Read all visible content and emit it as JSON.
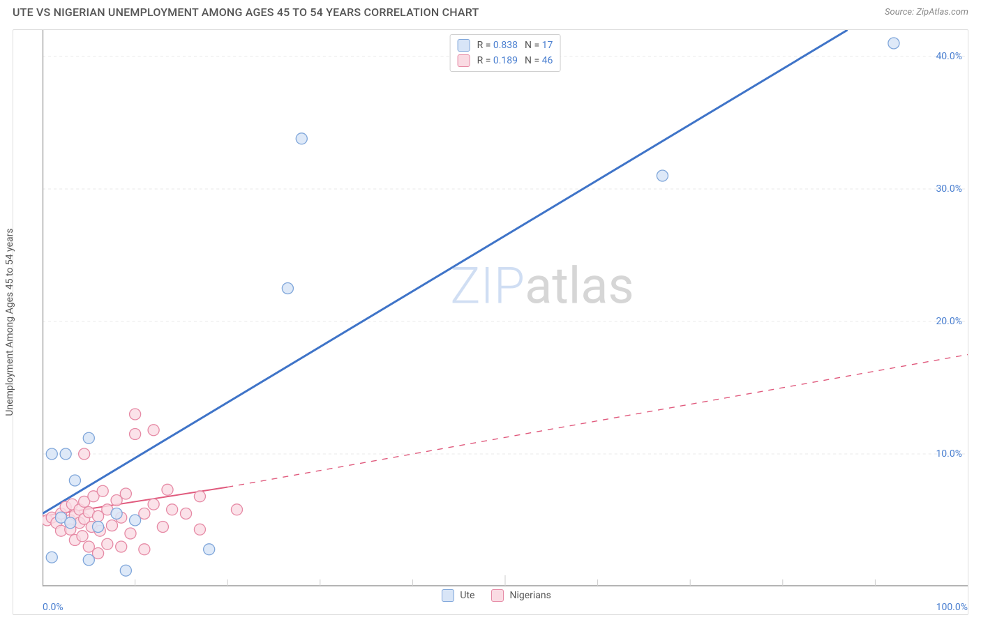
{
  "title": "UTE VS NIGERIAN UNEMPLOYMENT AMONG AGES 45 TO 54 YEARS CORRELATION CHART",
  "source": "Source: ZipAtlas.com",
  "ylabel": "Unemployment Among Ages 45 to 54 years",
  "watermark": {
    "part1": "ZIP",
    "part2": "atlas"
  },
  "chart": {
    "type": "scatter",
    "background_color": "#ffffff",
    "grid_color": "#e8e8e8",
    "axis_color": "#888888",
    "tick_color": "#cccccc",
    "label_color": "#4a7fd0",
    "xlim": [
      0,
      100
    ],
    "ylim": [
      0,
      42
    ],
    "x_ticks_minor": [
      10,
      20,
      30,
      40,
      50,
      60,
      70,
      80,
      90
    ],
    "x_ticks_labels": [
      {
        "v": 0,
        "label": "0.0%"
      },
      {
        "v": 100,
        "label": "100.0%"
      }
    ],
    "y_ticks": [
      {
        "v": 10,
        "label": "10.0%"
      },
      {
        "v": 20,
        "label": "20.0%"
      },
      {
        "v": 30,
        "label": "30.0%"
      },
      {
        "v": 40,
        "label": "40.0%"
      }
    ],
    "series": [
      {
        "name": "Ute",
        "color_fill": "#d8e5f7",
        "color_stroke": "#7fa6da",
        "marker_radius": 8,
        "marker_opacity": 0.85,
        "R": "0.838",
        "N": "17",
        "trend": {
          "solid": {
            "x1": 0,
            "y1": 5.5,
            "x2": 87,
            "y2": 42
          },
          "stroke": "#3f74c8",
          "width": 3
        },
        "points": [
          {
            "x": 1,
            "y": 10
          },
          {
            "x": 2.5,
            "y": 10
          },
          {
            "x": 5,
            "y": 11.2
          },
          {
            "x": 3.5,
            "y": 8
          },
          {
            "x": 2,
            "y": 5.2
          },
          {
            "x": 3,
            "y": 4.8
          },
          {
            "x": 6,
            "y": 4.5
          },
          {
            "x": 8,
            "y": 5.5
          },
          {
            "x": 10,
            "y": 5
          },
          {
            "x": 5,
            "y": 2
          },
          {
            "x": 9,
            "y": 1.2
          },
          {
            "x": 1,
            "y": 2.2
          },
          {
            "x": 18,
            "y": 2.8
          },
          {
            "x": 26.5,
            "y": 22.5
          },
          {
            "x": 28,
            "y": 33.8
          },
          {
            "x": 67,
            "y": 31
          },
          {
            "x": 92,
            "y": 41
          }
        ]
      },
      {
        "name": "Nigerians",
        "color_fill": "#fadbe3",
        "color_stroke": "#e68aa5",
        "marker_radius": 8,
        "marker_opacity": 0.8,
        "R": "0.189",
        "N": "46",
        "trend": {
          "solid": {
            "x1": 0,
            "y1": 5.3,
            "x2": 20,
            "y2": 7.5
          },
          "dashed": {
            "x1": 20,
            "y1": 7.5,
            "x2": 100,
            "y2": 17.5
          },
          "stroke": "#e05a7d",
          "width": 2
        },
        "points": [
          {
            "x": 0.5,
            "y": 5
          },
          {
            "x": 1,
            "y": 5.2
          },
          {
            "x": 1.5,
            "y": 4.8
          },
          {
            "x": 2,
            "y": 5.5
          },
          {
            "x": 2,
            "y": 4.2
          },
          {
            "x": 2.5,
            "y": 6
          },
          {
            "x": 3,
            "y": 5
          },
          {
            "x": 3,
            "y": 4.3
          },
          {
            "x": 3.2,
            "y": 6.2
          },
          {
            "x": 3.5,
            "y": 5.4
          },
          {
            "x": 3.5,
            "y": 3.5
          },
          {
            "x": 4,
            "y": 5.8
          },
          {
            "x": 4,
            "y": 4.8
          },
          {
            "x": 4.3,
            "y": 3.8
          },
          {
            "x": 4.5,
            "y": 6.4
          },
          {
            "x": 4.5,
            "y": 5.1
          },
          {
            "x": 5,
            "y": 3
          },
          {
            "x": 5,
            "y": 5.6
          },
          {
            "x": 5.3,
            "y": 4.5
          },
          {
            "x": 5.5,
            "y": 6.8
          },
          {
            "x": 6,
            "y": 2.5
          },
          {
            "x": 6,
            "y": 5.3
          },
          {
            "x": 6.2,
            "y": 4.2
          },
          {
            "x": 6.5,
            "y": 7.2
          },
          {
            "x": 7,
            "y": 3.2
          },
          {
            "x": 7,
            "y": 5.8
          },
          {
            "x": 7.5,
            "y": 4.6
          },
          {
            "x": 8,
            "y": 6.5
          },
          {
            "x": 8.5,
            "y": 3
          },
          {
            "x": 8.5,
            "y": 5.2
          },
          {
            "x": 9,
            "y": 7
          },
          {
            "x": 9.5,
            "y": 4
          },
          {
            "x": 10,
            "y": 11.5
          },
          {
            "x": 10,
            "y": 13
          },
          {
            "x": 11,
            "y": 2.8
          },
          {
            "x": 11,
            "y": 5.5
          },
          {
            "x": 12,
            "y": 11.8
          },
          {
            "x": 12,
            "y": 6.2
          },
          {
            "x": 13,
            "y": 4.5
          },
          {
            "x": 13.5,
            "y": 7.3
          },
          {
            "x": 14,
            "y": 5.8
          },
          {
            "x": 15.5,
            "y": 5.5
          },
          {
            "x": 17,
            "y": 6.8
          },
          {
            "x": 17,
            "y": 4.3
          },
          {
            "x": 21,
            "y": 5.8
          },
          {
            "x": 4.5,
            "y": 10
          }
        ]
      }
    ],
    "bottom_legend": [
      {
        "label": "Ute",
        "fill": "#d8e5f7",
        "stroke": "#7fa6da"
      },
      {
        "label": "Nigerians",
        "fill": "#fadbe3",
        "stroke": "#e68aa5"
      }
    ]
  }
}
